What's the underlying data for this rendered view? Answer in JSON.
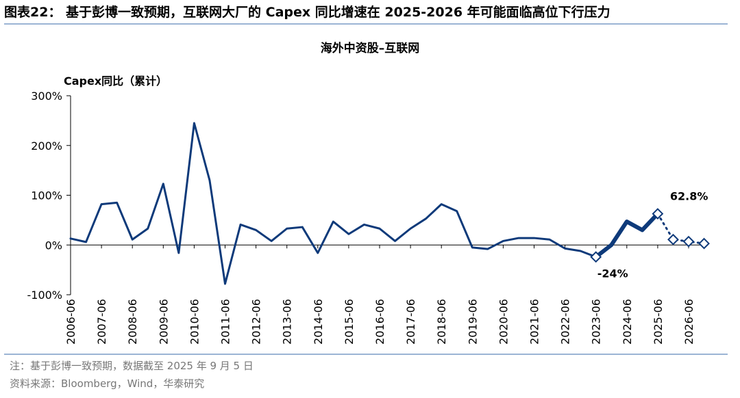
{
  "header": {
    "title": "图表22：  基于彭博一致预期，互联网大厂的 Capex 同比增速在 2025-2026 年可能面临高位下行压力"
  },
  "chart_data": {
    "type": "line",
    "title": "海外中资股–互联网",
    "y_label": "Capex同比（累计）",
    "categories": [
      "2006-06",
      null,
      "2007-06",
      null,
      "2008-06",
      null,
      "2009-06",
      null,
      "2010-06",
      null,
      "2011-06",
      null,
      "2012-06",
      null,
      "2013-06",
      null,
      "2014-06",
      null,
      "2015-06",
      null,
      "2016-06",
      null,
      "2017-06",
      null,
      "2018-06",
      null,
      "2019-06",
      null,
      "2020-06",
      null,
      "2021-06",
      null,
      "2022-06",
      null,
      "2023-06",
      null,
      "2024-06",
      null,
      "2025-06",
      null,
      "2026-06",
      null
    ],
    "series": [
      {
        "color": "#0e3a7a",
        "width": 3,
        "values": [
          13,
          6,
          82,
          85,
          11,
          33,
          123,
          -16,
          245,
          130,
          -78,
          41,
          30,
          8,
          33,
          36,
          -16,
          47,
          22,
          41,
          33,
          8,
          33,
          53,
          82,
          68,
          -5,
          -8,
          8,
          14,
          14,
          11,
          -7,
          -12,
          -24,
          null,
          null,
          null,
          null,
          null,
          null,
          null
        ]
      },
      {
        "color": "#0e3a7a",
        "width": 6,
        "values": [
          null,
          null,
          null,
          null,
          null,
          null,
          null,
          null,
          null,
          null,
          null,
          null,
          null,
          null,
          null,
          null,
          null,
          null,
          null,
          null,
          null,
          null,
          null,
          null,
          null,
          null,
          null,
          null,
          null,
          null,
          null,
          null,
          null,
          null,
          -24,
          0,
          47,
          30,
          62.8,
          null,
          null,
          null
        ],
        "value_labels": [
          null,
          null,
          null,
          null,
          null,
          null,
          null,
          null,
          null,
          null,
          null,
          null,
          null,
          null,
          null,
          null,
          null,
          null,
          null,
          null,
          null,
          null,
          null,
          null,
          null,
          null,
          null,
          null,
          null,
          null,
          null,
          null,
          null,
          null,
          "-24%",
          null,
          null,
          null,
          null,
          null,
          null,
          null
        ]
      },
      {
        "color": "#0e3a7a",
        "width": 3,
        "dash": true,
        "marker": "diamond",
        "values": [
          null,
          null,
          null,
          null,
          null,
          null,
          null,
          null,
          null,
          null,
          null,
          null,
          null,
          null,
          null,
          null,
          null,
          null,
          null,
          null,
          null,
          null,
          null,
          null,
          null,
          null,
          null,
          null,
          null,
          null,
          null,
          null,
          null,
          null,
          null,
          null,
          null,
          null,
          62.8,
          11,
          7,
          3
        ],
        "value_labels": [
          null,
          null,
          null,
          null,
          null,
          null,
          null,
          null,
          null,
          null,
          null,
          null,
          null,
          null,
          null,
          null,
          null,
          null,
          null,
          null,
          null,
          null,
          null,
          null,
          null,
          null,
          null,
          null,
          null,
          null,
          null,
          null,
          null,
          null,
          null,
          null,
          null,
          null,
          "62.8%",
          null,
          null,
          null
        ]
      }
    ],
    "ylim": [
      -100,
      300
    ],
    "yticks": [
      {
        "value": -100,
        "label": "-100%"
      },
      {
        "value": 0,
        "label": "0%"
      },
      {
        "value": 100,
        "label": "100%"
      },
      {
        "value": 200,
        "label": "200%"
      },
      {
        "value": 300,
        "label": "300%"
      }
    ]
  },
  "footer": {
    "note": "注：基于彭博一致预期，数据截至 2025 年 9 月 5 日",
    "source": "资料来源：Bloomberg，Wind，华泰研究"
  }
}
